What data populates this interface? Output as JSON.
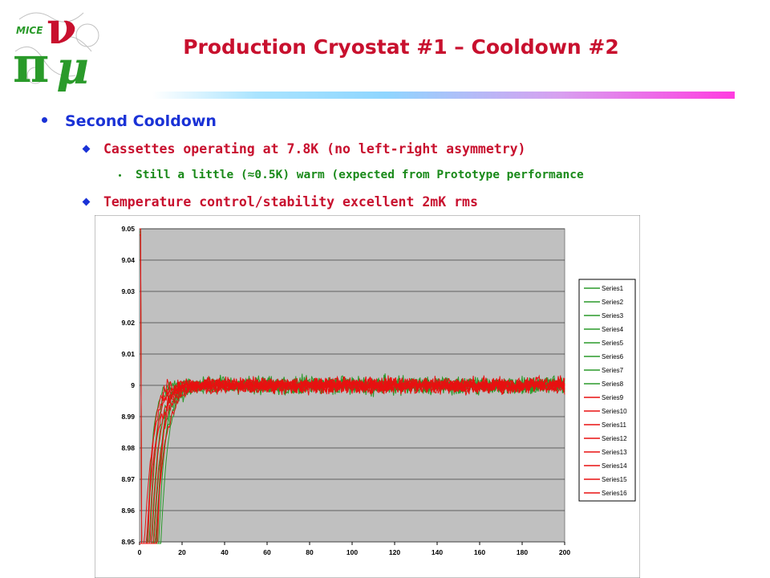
{
  "logo_text": "MICE",
  "title": "Production Cryostat #1 – Cooldown #2",
  "bullets": {
    "level1": "Second Cooldown",
    "level2a": "Cassettes operating at 7.8K (no left-right asymmetry)",
    "level3": "Still a little (≈0.5K) warm (expected from Prototype performance",
    "level2b": "Temperature control/stability excellent 2mK rms"
  },
  "colors": {
    "title": "#c8102e",
    "bullet_blue": "#1a32d6",
    "bullet_red": "#c8102e",
    "sub_green": "#1a8a1a",
    "plot_bg": "#c0c0c0",
    "green_series": "#2a9a2a",
    "red_series": "#e81010"
  },
  "chart_data": {
    "type": "line",
    "xlim": [
      0,
      200
    ],
    "ylim": [
      8.95,
      9.05
    ],
    "x_ticks": [
      "0",
      "20",
      "40",
      "60",
      "80",
      "100",
      "120",
      "140",
      "160",
      "180",
      "200"
    ],
    "y_ticks": [
      "9.05",
      "9.04",
      "9.03",
      "9.02",
      "9.01",
      "9",
      "8.99",
      "8.98",
      "8.97",
      "8.96",
      "8.95"
    ],
    "grid": true,
    "legend_position": "right",
    "steady_state": 9.0,
    "noise_rms": 0.002,
    "series": [
      {
        "name": "Series1",
        "color": "#2a9a2a"
      },
      {
        "name": "Series2",
        "color": "#2a9a2a"
      },
      {
        "name": "Series3",
        "color": "#2a9a2a"
      },
      {
        "name": "Series4",
        "color": "#2a9a2a"
      },
      {
        "name": "Series5",
        "color": "#2a9a2a"
      },
      {
        "name": "Series6",
        "color": "#2a9a2a"
      },
      {
        "name": "Series7",
        "color": "#2a9a2a"
      },
      {
        "name": "Series8",
        "color": "#2a9a2a"
      },
      {
        "name": "Series9",
        "color": "#e81010"
      },
      {
        "name": "Series10",
        "color": "#e81010"
      },
      {
        "name": "Series11",
        "color": "#e81010"
      },
      {
        "name": "Series12",
        "color": "#e81010"
      },
      {
        "name": "Series13",
        "color": "#e81010"
      },
      {
        "name": "Series14",
        "color": "#e81010"
      },
      {
        "name": "Series15",
        "color": "#e81010"
      },
      {
        "name": "Series16",
        "color": "#e81010"
      }
    ]
  }
}
